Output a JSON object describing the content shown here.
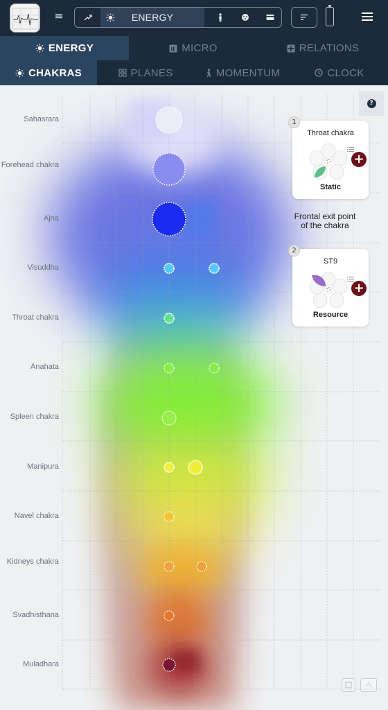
{
  "header": {
    "mode_label": "ENERGY",
    "icons": [
      "menu-list-icon",
      "trend-icon",
      "sun-icon",
      "person-icon",
      "face-icon",
      "card-icon",
      "sort-icon",
      "battery-icon",
      "hamburger-icon"
    ]
  },
  "tabs_primary": [
    {
      "label": "ENERGY",
      "icon": "sun-icon",
      "active": true
    },
    {
      "label": "MICRO",
      "icon": "micro-icon",
      "active": false
    },
    {
      "label": "RELATIONS",
      "icon": "relations-icon",
      "active": false
    }
  ],
  "tabs_secondary": [
    {
      "label": "CHAKRAS",
      "icon": "sun-icon",
      "active": true
    },
    {
      "label": "PLANES",
      "icon": "grid-icon",
      "active": false
    },
    {
      "label": "MOMENTUM",
      "icon": "walk-icon",
      "active": false
    },
    {
      "label": "CLOCK",
      "icon": "clock-icon",
      "active": false
    }
  ],
  "rows": [
    {
      "label": "Sahasrara"
    },
    {
      "label": "Forehead chakra"
    },
    {
      "label": "Ajna"
    },
    {
      "label": "Visuddha"
    },
    {
      "label": "Throat chakra"
    },
    {
      "label": "Anahata"
    },
    {
      "label": "Spleen chakra"
    },
    {
      "label": "Manipura"
    },
    {
      "label": "Navel chakra"
    },
    {
      "label": "Kidneys chakra"
    },
    {
      "label": "Svadhisthana"
    },
    {
      "label": "Muladhara"
    }
  ],
  "help_label": "?",
  "cards": [
    {
      "number": "1",
      "title": "Throat chakra",
      "status": "Static",
      "leaf_color": "#5fbf8a"
    },
    {
      "number": "2",
      "title": "ST9",
      "status": "Resource",
      "leaf_color": "#9a6cc4"
    }
  ],
  "between_text": "Frontal exit point of the chakra",
  "colors": {
    "header_bg": "#1c2a3a",
    "tab_active_bg": "#2b4560",
    "plus_button": "#6b0f1a"
  }
}
